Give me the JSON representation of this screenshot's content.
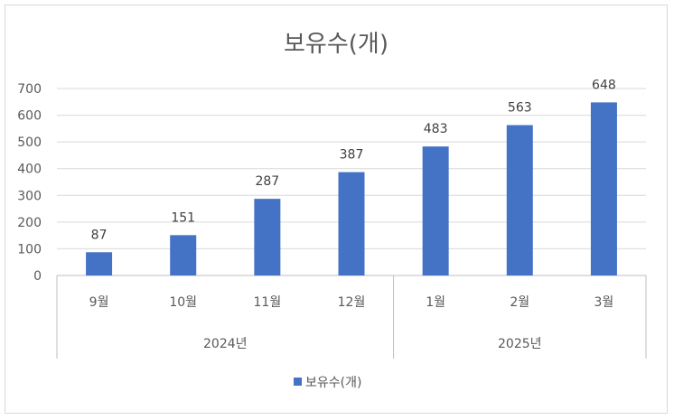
{
  "chart_data": {
    "type": "bar",
    "title": "보유수(개)",
    "categories": [
      "9월",
      "10월",
      "11월",
      "12월",
      "1월",
      "2월",
      "3월"
    ],
    "category_groups": [
      {
        "label": "2024년",
        "categories": [
          "9월",
          "10월",
          "11월",
          "12월"
        ]
      },
      {
        "label": "2025년",
        "categories": [
          "1월",
          "2월",
          "3월"
        ]
      }
    ],
    "series": [
      {
        "name": "보유수(개)",
        "values": [
          87,
          151,
          287,
          387,
          483,
          563,
          648
        ],
        "color": "#4472c4"
      }
    ],
    "ylim": [
      0,
      700
    ],
    "yticks": [
      0,
      100,
      200,
      300,
      400,
      500,
      600,
      700
    ],
    "grid": true,
    "data_labels": true,
    "legend": "bottom"
  }
}
